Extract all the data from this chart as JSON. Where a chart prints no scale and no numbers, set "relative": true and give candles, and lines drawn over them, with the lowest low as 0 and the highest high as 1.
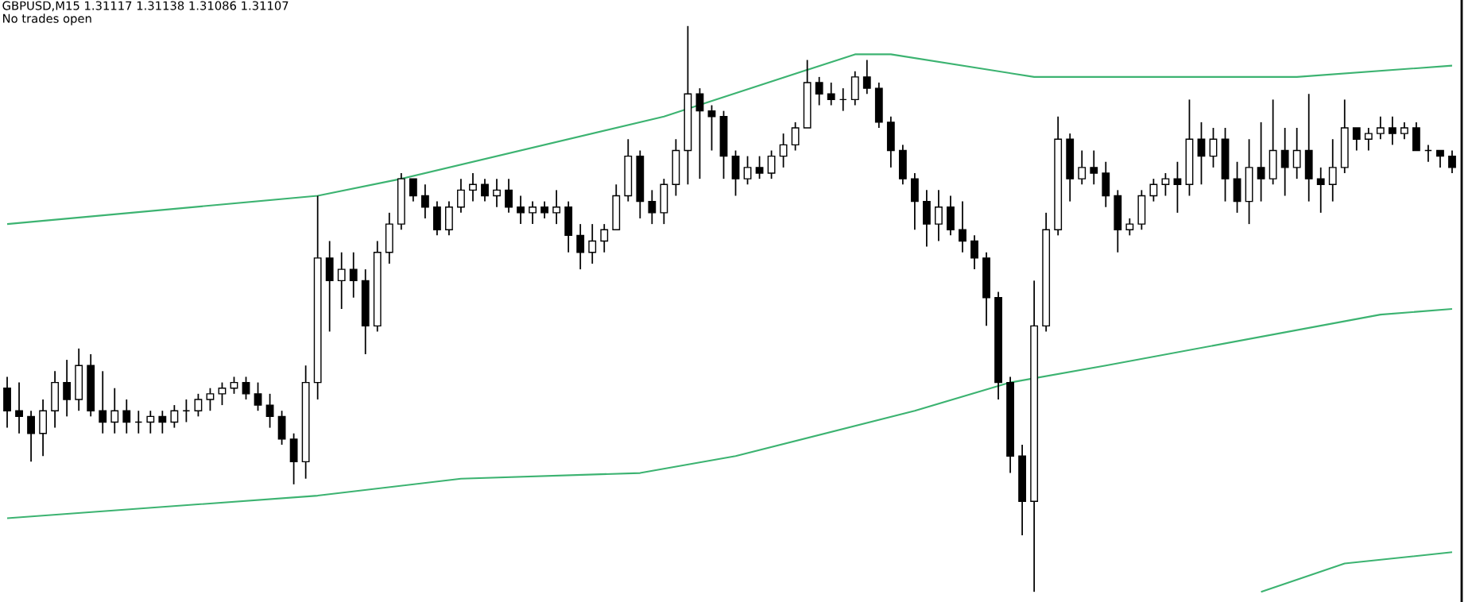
{
  "chart_data": {
    "type": "candlestick",
    "title": "GBPUSD,M15  1.31117 1.31138 1.31086 1.31107",
    "subtitle": "No trades open",
    "relative": true,
    "categories": [
      null,
      null,
      null,
      null,
      null,
      null,
      null,
      null,
      null,
      null,
      null,
      null,
      null,
      null,
      null,
      null,
      null,
      null,
      null,
      null,
      null,
      null,
      null,
      null,
      null,
      null,
      null,
      null,
      null,
      null,
      null,
      null,
      null,
      null,
      null,
      null,
      null,
      null,
      null,
      null,
      null,
      null,
      null,
      null,
      null,
      null,
      null,
      null,
      null,
      null,
      null,
      null,
      null,
      null,
      null,
      null,
      null,
      null,
      null,
      null,
      null,
      null,
      null,
      null,
      null,
      null,
      null,
      null,
      null,
      null,
      null,
      null,
      null,
      null,
      null,
      null,
      null,
      null,
      null,
      null,
      null,
      null,
      null,
      null,
      null,
      null,
      null,
      null,
      null,
      null,
      null,
      null,
      null,
      null,
      null,
      null,
      null,
      null,
      null,
      null,
      null,
      null,
      null,
      null,
      null,
      null,
      null,
      null,
      null,
      null,
      null,
      null,
      null,
      null,
      null,
      null,
      null,
      null,
      null,
      null,
      null,
      null
    ],
    "ohlc": [
      [
        0.36,
        0.38,
        0.29,
        0.32
      ],
      [
        0.32,
        0.37,
        0.28,
        0.31
      ],
      [
        0.31,
        0.32,
        0.23,
        0.28
      ],
      [
        0.28,
        0.34,
        0.24,
        0.32
      ],
      [
        0.32,
        0.39,
        0.29,
        0.37
      ],
      [
        0.37,
        0.41,
        0.31,
        0.34
      ],
      [
        0.34,
        0.43,
        0.32,
        0.4
      ],
      [
        0.4,
        0.42,
        0.31,
        0.32
      ],
      [
        0.32,
        0.39,
        0.28,
        0.3
      ],
      [
        0.3,
        0.36,
        0.28,
        0.32
      ],
      [
        0.32,
        0.34,
        0.28,
        0.3
      ],
      [
        0.3,
        0.32,
        0.28,
        0.3
      ],
      [
        0.3,
        0.32,
        0.28,
        0.31
      ],
      [
        0.31,
        0.32,
        0.28,
        0.3
      ],
      [
        0.3,
        0.33,
        0.29,
        0.32
      ],
      [
        0.32,
        0.34,
        0.3,
        0.32
      ],
      [
        0.32,
        0.35,
        0.31,
        0.34
      ],
      [
        0.34,
        0.36,
        0.32,
        0.35
      ],
      [
        0.35,
        0.37,
        0.33,
        0.36
      ],
      [
        0.36,
        0.38,
        0.35,
        0.37
      ],
      [
        0.37,
        0.38,
        0.34,
        0.35
      ],
      [
        0.35,
        0.37,
        0.32,
        0.33
      ],
      [
        0.33,
        0.35,
        0.29,
        0.31
      ],
      [
        0.31,
        0.32,
        0.26,
        0.27
      ],
      [
        0.27,
        0.28,
        0.19,
        0.23
      ],
      [
        0.23,
        0.4,
        0.2,
        0.37
      ],
      [
        0.37,
        0.7,
        0.34,
        0.59
      ],
      [
        0.59,
        0.62,
        0.46,
        0.55
      ],
      [
        0.55,
        0.6,
        0.5,
        0.57
      ],
      [
        0.57,
        0.6,
        0.52,
        0.55
      ],
      [
        0.55,
        0.57,
        0.42,
        0.47
      ],
      [
        0.47,
        0.62,
        0.46,
        0.6
      ],
      [
        0.6,
        0.67,
        0.58,
        0.65
      ],
      [
        0.65,
        0.74,
        0.64,
        0.73
      ],
      [
        0.73,
        0.73,
        0.69,
        0.7
      ],
      [
        0.7,
        0.72,
        0.66,
        0.68
      ],
      [
        0.68,
        0.69,
        0.63,
        0.64
      ],
      [
        0.64,
        0.69,
        0.63,
        0.68
      ],
      [
        0.68,
        0.73,
        0.67,
        0.71
      ],
      [
        0.71,
        0.74,
        0.69,
        0.72
      ],
      [
        0.72,
        0.73,
        0.69,
        0.7
      ],
      [
        0.7,
        0.73,
        0.68,
        0.71
      ],
      [
        0.71,
        0.73,
        0.67,
        0.68
      ],
      [
        0.68,
        0.7,
        0.65,
        0.67
      ],
      [
        0.67,
        0.69,
        0.65,
        0.68
      ],
      [
        0.68,
        0.69,
        0.66,
        0.67
      ],
      [
        0.67,
        0.71,
        0.65,
        0.68
      ],
      [
        0.68,
        0.69,
        0.6,
        0.63
      ],
      [
        0.63,
        0.65,
        0.57,
        0.6
      ],
      [
        0.6,
        0.65,
        0.58,
        0.62
      ],
      [
        0.62,
        0.65,
        0.6,
        0.64
      ],
      [
        0.64,
        0.72,
        0.64,
        0.7
      ],
      [
        0.7,
        0.8,
        0.69,
        0.77
      ],
      [
        0.77,
        0.78,
        0.66,
        0.69
      ],
      [
        0.69,
        0.71,
        0.65,
        0.67
      ],
      [
        0.67,
        0.73,
        0.65,
        0.72
      ],
      [
        0.72,
        0.8,
        0.7,
        0.78
      ],
      [
        0.78,
        1.0,
        0.72,
        0.88
      ],
      [
        0.88,
        0.89,
        0.73,
        0.85
      ],
      [
        0.85,
        0.86,
        0.78,
        0.84
      ],
      [
        0.84,
        0.85,
        0.73,
        0.77
      ],
      [
        0.77,
        0.78,
        0.7,
        0.73
      ],
      [
        0.73,
        0.77,
        0.72,
        0.75
      ],
      [
        0.75,
        0.77,
        0.73,
        0.74
      ],
      [
        0.74,
        0.78,
        0.73,
        0.77
      ],
      [
        0.77,
        0.81,
        0.75,
        0.79
      ],
      [
        0.79,
        0.83,
        0.78,
        0.82
      ],
      [
        0.82,
        0.94,
        0.82,
        0.9
      ],
      [
        0.9,
        0.91,
        0.86,
        0.88
      ],
      [
        0.88,
        0.9,
        0.86,
        0.87
      ],
      [
        0.87,
        0.89,
        0.85,
        0.87
      ],
      [
        0.87,
        0.92,
        0.86,
        0.91
      ],
      [
        0.91,
        0.94,
        0.88,
        0.89
      ],
      [
        0.89,
        0.9,
        0.82,
        0.83
      ],
      [
        0.83,
        0.84,
        0.75,
        0.78
      ],
      [
        0.78,
        0.79,
        0.72,
        0.73
      ],
      [
        0.73,
        0.74,
        0.64,
        0.69
      ],
      [
        0.69,
        0.71,
        0.61,
        0.65
      ],
      [
        0.65,
        0.71,
        0.62,
        0.68
      ],
      [
        0.68,
        0.7,
        0.63,
        0.64
      ],
      [
        0.64,
        0.69,
        0.6,
        0.62
      ],
      [
        0.62,
        0.63,
        0.57,
        0.59
      ],
      [
        0.59,
        0.6,
        0.47,
        0.52
      ],
      [
        0.52,
        0.53,
        0.34,
        0.37
      ],
      [
        0.37,
        0.38,
        0.21,
        0.24
      ],
      [
        0.24,
        0.26,
        0.1,
        0.16
      ],
      [
        0.16,
        0.55,
        0.0,
        0.47
      ],
      [
        0.47,
        0.67,
        0.46,
        0.64
      ],
      [
        0.64,
        0.84,
        0.63,
        0.8
      ],
      [
        0.8,
        0.81,
        0.69,
        0.73
      ],
      [
        0.73,
        0.78,
        0.72,
        0.75
      ],
      [
        0.75,
        0.78,
        0.72,
        0.74
      ],
      [
        0.74,
        0.76,
        0.68,
        0.7
      ],
      [
        0.7,
        0.71,
        0.6,
        0.64
      ],
      [
        0.64,
        0.66,
        0.63,
        0.65
      ],
      [
        0.65,
        0.71,
        0.64,
        0.7
      ],
      [
        0.7,
        0.73,
        0.69,
        0.72
      ],
      [
        0.72,
        0.74,
        0.7,
        0.73
      ],
      [
        0.73,
        0.76,
        0.67,
        0.72
      ],
      [
        0.72,
        0.87,
        0.7,
        0.8
      ],
      [
        0.8,
        0.83,
        0.72,
        0.77
      ],
      [
        0.77,
        0.82,
        0.75,
        0.8
      ],
      [
        0.8,
        0.82,
        0.69,
        0.73
      ],
      [
        0.73,
        0.76,
        0.67,
        0.69
      ],
      [
        0.69,
        0.8,
        0.65,
        0.75
      ],
      [
        0.75,
        0.83,
        0.69,
        0.73
      ],
      [
        0.73,
        0.87,
        0.72,
        0.78
      ],
      [
        0.78,
        0.82,
        0.7,
        0.75
      ],
      [
        0.75,
        0.82,
        0.73,
        0.78
      ],
      [
        0.78,
        0.88,
        0.69,
        0.73
      ],
      [
        0.73,
        0.75,
        0.67,
        0.72
      ],
      [
        0.72,
        0.8,
        0.69,
        0.75
      ],
      [
        0.75,
        0.87,
        0.74,
        0.82
      ],
      [
        0.82,
        0.82,
        0.78,
        0.8
      ],
      [
        0.8,
        0.82,
        0.78,
        0.81
      ],
      [
        0.81,
        0.84,
        0.8,
        0.82
      ],
      [
        0.82,
        0.84,
        0.79,
        0.81
      ],
      [
        0.81,
        0.83,
        0.8,
        0.82
      ],
      [
        0.82,
        0.83,
        0.78,
        0.78
      ],
      [
        0.78,
        0.79,
        0.76,
        0.78
      ],
      [
        0.78,
        0.78,
        0.75,
        0.77
      ],
      [
        0.77,
        0.78,
        0.74,
        0.75
      ]
    ],
    "series": [
      {
        "type": "line",
        "color": "#3cb371",
        "values": [
          0.65,
          null,
          null,
          null,
          null,
          null,
          null,
          null,
          null,
          null,
          null,
          null,
          null,
          null,
          null,
          null,
          null,
          null,
          null,
          null,
          null,
          null,
          null,
          null,
          null,
          null,
          0.7,
          null,
          null,
          null,
          null,
          null,
          null,
          0.73,
          null,
          null,
          null,
          null,
          null,
          null,
          null,
          null,
          null,
          null,
          null,
          null,
          null,
          null,
          null,
          null,
          null,
          null,
          null,
          null,
          null,
          0.84,
          null,
          null,
          null,
          null,
          null,
          null,
          null,
          null,
          null,
          null,
          null,
          null,
          null,
          null,
          null,
          0.95,
          null,
          null,
          0.95,
          null,
          null,
          null,
          null,
          null,
          null,
          null,
          null,
          null,
          null,
          null,
          0.91,
          null,
          null,
          null,
          null,
          null,
          null,
          null,
          null,
          null,
          null,
          null,
          null,
          null,
          null,
          null,
          null,
          null,
          null,
          null,
          null,
          null,
          0.91,
          null,
          null,
          null,
          null,
          null,
          null,
          null,
          null,
          null,
          null,
          null,
          null,
          0.93
        ]
      },
      {
        "type": "line",
        "color": "#3cb371",
        "values": [
          0.13,
          null,
          null,
          null,
          null,
          null,
          null,
          null,
          null,
          null,
          null,
          null,
          null,
          null,
          null,
          null,
          null,
          null,
          null,
          null,
          null,
          null,
          null,
          null,
          null,
          null,
          0.17,
          null,
          null,
          null,
          null,
          null,
          null,
          null,
          null,
          null,
          null,
          null,
          0.2,
          null,
          null,
          null,
          null,
          null,
          null,
          null,
          null,
          null,
          null,
          null,
          null,
          null,
          null,
          0.21,
          null,
          null,
          null,
          null,
          null,
          null,
          null,
          0.24,
          null,
          null,
          null,
          null,
          null,
          null,
          null,
          null,
          null,
          null,
          null,
          null,
          null,
          null,
          0.32,
          null,
          null,
          null,
          null,
          null,
          null,
          null,
          0.37,
          null,
          null,
          null,
          null,
          null,
          null,
          null,
          0.4,
          null,
          null,
          null,
          null,
          null,
          null,
          null,
          null,
          null,
          null,
          null,
          null,
          null,
          null,
          null,
          null,
          null,
          null,
          null,
          null,
          null,
          null,
          0.49,
          null,
          null,
          null,
          null,
          null,
          0.5
        ]
      },
      {
        "type": "line",
        "color": "#3cb371",
        "values": [
          null,
          null,
          null,
          null,
          null,
          null,
          null,
          null,
          null,
          null,
          null,
          null,
          null,
          null,
          null,
          null,
          null,
          null,
          null,
          null,
          null,
          null,
          null,
          null,
          null,
          null,
          null,
          null,
          null,
          null,
          null,
          null,
          null,
          null,
          null,
          null,
          null,
          null,
          null,
          null,
          null,
          null,
          null,
          null,
          null,
          null,
          null,
          null,
          null,
          null,
          null,
          null,
          null,
          null,
          null,
          null,
          null,
          null,
          null,
          null,
          null,
          null,
          null,
          null,
          null,
          null,
          null,
          null,
          null,
          null,
          null,
          null,
          null,
          null,
          null,
          null,
          null,
          null,
          null,
          null,
          null,
          null,
          null,
          null,
          null,
          null,
          null,
          null,
          null,
          null,
          null,
          null,
          null,
          null,
          null,
          null,
          null,
          null,
          null,
          null,
          null,
          null,
          null,
          null,
          null,
          0.0,
          null,
          null,
          null,
          null,
          null,
          null,
          0.05,
          null,
          null,
          null,
          null,
          null,
          null,
          null,
          null,
          0.07
        ]
      }
    ]
  }
}
